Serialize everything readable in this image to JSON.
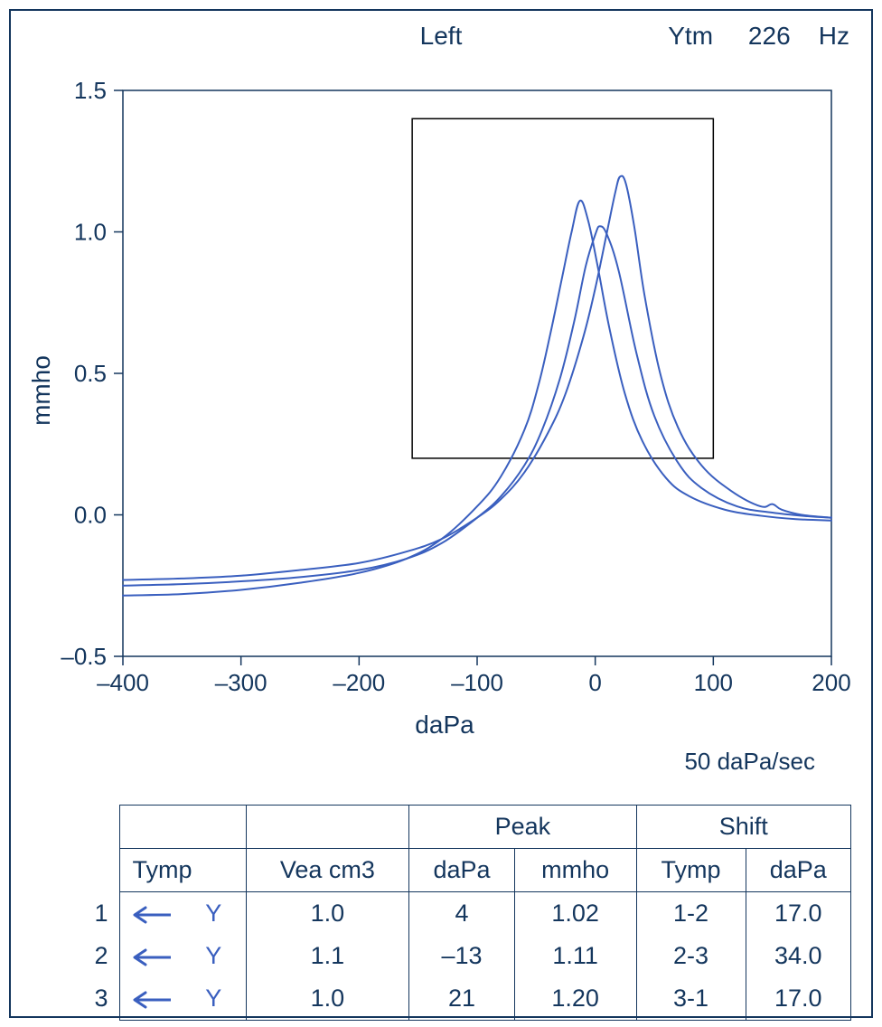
{
  "header": {
    "center": "Left",
    "right_param": "Ytm",
    "right_freq": "226",
    "right_unit": "Hz"
  },
  "chart": {
    "type": "line",
    "xlabel": "daPa",
    "ylabel": "mmho",
    "rate_label": "50 daPa/sec",
    "xlim": [
      -400,
      200
    ],
    "ylim": [
      -0.5,
      1.5
    ],
    "xticks": [
      -400,
      -300,
      -200,
      -100,
      0,
      100,
      200
    ],
    "yticks": [
      -0.5,
      0.0,
      0.5,
      1.0,
      1.5
    ],
    "ytick_labels": [
      "–0.5",
      "0.0",
      "0.5",
      "1.0",
      "1.5"
    ],
    "xtick_labels": [
      "–400",
      "–300",
      "–200",
      "–100",
      "0",
      "100",
      "200"
    ],
    "line_color": "#3a5fbf",
    "line_width": 2,
    "axis_color": "#14365d",
    "axis_width": 1.5,
    "norm_box": {
      "xmin": -155,
      "xmax": 100,
      "ymin": 0.2,
      "ymax": 1.4
    },
    "norm_box_color": "#000000",
    "background_color": "#ffffff",
    "series": [
      {
        "name": "Tymp 1",
        "peak_daPa": 4,
        "peak_mmho": 1.02,
        "points": [
          [
            -400,
            -0.25
          ],
          [
            -350,
            -0.245
          ],
          [
            -300,
            -0.235
          ],
          [
            -250,
            -0.22
          ],
          [
            -200,
            -0.195
          ],
          [
            -160,
            -0.155
          ],
          [
            -130,
            -0.1
          ],
          [
            -100,
            -0.01
          ],
          [
            -80,
            0.065
          ],
          [
            -60,
            0.175
          ],
          [
            -45,
            0.3
          ],
          [
            -30,
            0.48
          ],
          [
            -18,
            0.68
          ],
          [
            -8,
            0.88
          ],
          [
            0,
            0.99
          ],
          [
            4,
            1.02
          ],
          [
            10,
            0.99
          ],
          [
            20,
            0.86
          ],
          [
            35,
            0.57
          ],
          [
            50,
            0.35
          ],
          [
            70,
            0.185
          ],
          [
            90,
            0.095
          ],
          [
            120,
            0.03
          ],
          [
            150,
            0.008
          ],
          [
            180,
            -0.005
          ],
          [
            200,
            -0.01
          ]
        ]
      },
      {
        "name": "Tymp 2",
        "peak_daPa": -13,
        "peak_mmho": 1.11,
        "points": [
          [
            -400,
            -0.285
          ],
          [
            -350,
            -0.28
          ],
          [
            -300,
            -0.265
          ],
          [
            -250,
            -0.24
          ],
          [
            -200,
            -0.205
          ],
          [
            -160,
            -0.155
          ],
          [
            -130,
            -0.085
          ],
          [
            -100,
            0.03
          ],
          [
            -80,
            0.135
          ],
          [
            -60,
            0.3
          ],
          [
            -48,
            0.46
          ],
          [
            -38,
            0.64
          ],
          [
            -28,
            0.84
          ],
          [
            -20,
            1.0
          ],
          [
            -13,
            1.11
          ],
          [
            -6,
            1.04
          ],
          [
            2,
            0.88
          ],
          [
            12,
            0.66
          ],
          [
            25,
            0.43
          ],
          [
            40,
            0.26
          ],
          [
            60,
            0.13
          ],
          [
            80,
            0.065
          ],
          [
            110,
            0.018
          ],
          [
            140,
            -0.003
          ],
          [
            170,
            -0.015
          ],
          [
            200,
            -0.02
          ]
        ]
      },
      {
        "name": "Tymp 3",
        "peak_daPa": 21,
        "peak_mmho": 1.2,
        "points": [
          [
            -400,
            -0.23
          ],
          [
            -350,
            -0.225
          ],
          [
            -300,
            -0.215
          ],
          [
            -250,
            -0.195
          ],
          [
            -200,
            -0.17
          ],
          [
            -160,
            -0.13
          ],
          [
            -130,
            -0.085
          ],
          [
            -100,
            -0.01
          ],
          [
            -80,
            0.055
          ],
          [
            -60,
            0.15
          ],
          [
            -40,
            0.29
          ],
          [
            -25,
            0.43
          ],
          [
            -10,
            0.63
          ],
          [
            0,
            0.8
          ],
          [
            10,
            1.0
          ],
          [
            17,
            1.14
          ],
          [
            21,
            1.195
          ],
          [
            26,
            1.17
          ],
          [
            33,
            1.02
          ],
          [
            42,
            0.77
          ],
          [
            55,
            0.5
          ],
          [
            70,
            0.31
          ],
          [
            90,
            0.175
          ],
          [
            115,
            0.085
          ],
          [
            140,
            0.03
          ],
          [
            150,
            0.038
          ],
          [
            158,
            0.018
          ],
          [
            175,
            0.0
          ],
          [
            200,
            -0.01
          ]
        ]
      }
    ]
  },
  "table": {
    "group_headers": {
      "peak": "Peak",
      "shift": "Shift"
    },
    "columns": {
      "tymp": "Tymp",
      "vea": "Vea cm3",
      "peak_dapa": "daPa",
      "peak_mmho": "mmho",
      "shift_tymp": "Tymp",
      "shift_dapa": "daPa"
    },
    "symbol": "Y",
    "arrow_color": "#3a5fbf",
    "rows": [
      {
        "n": "1",
        "vea": "1.0",
        "peak_dapa": "4",
        "peak_mmho": "1.02",
        "shift_tymp": "1-2",
        "shift_dapa": "17.0"
      },
      {
        "n": "2",
        "vea": "1.1",
        "peak_dapa": "–13",
        "peak_mmho": "1.11",
        "shift_tymp": "2-3",
        "shift_dapa": "34.0"
      },
      {
        "n": "3",
        "vea": "1.0",
        "peak_dapa": "21",
        "peak_mmho": "1.20",
        "shift_tymp": "3-1",
        "shift_dapa": "17.0"
      }
    ]
  },
  "colors": {
    "frame": "#14365d",
    "text": "#14365d",
    "curve": "#3a5fbf"
  }
}
